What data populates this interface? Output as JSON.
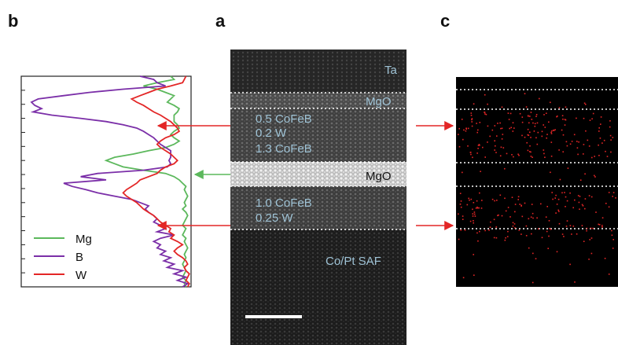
{
  "panels": {
    "a": "a",
    "b": "b",
    "c": "c"
  },
  "tem_labels": {
    "ta": "Ta",
    "mgo_top": "MgO",
    "cofeb_05": "0.5 CoFeB",
    "w_02": "0.2 W",
    "cofeb_13": "1.3 CoFeB",
    "mgo_mid": "MgO",
    "cofeb_10": "1.0  CoFeB",
    "w_025": "0.25 W",
    "copt": "Co/Pt SAF"
  },
  "legend": [
    {
      "label": "Mg",
      "color": "#5cb85c"
    },
    {
      "label": "B",
      "color": "#7b2fa8"
    },
    {
      "label": "W",
      "color": "#e32626"
    }
  ],
  "colors": {
    "arrow_red": "#e32626",
    "arrow_green": "#5cb85c",
    "label_blue": "#9fc3d6"
  },
  "chart_data": {
    "type": "line",
    "orientation": "vertical-profile",
    "series": [
      {
        "name": "Mg",
        "y": [
          0,
          1,
          2,
          3,
          4,
          5,
          6,
          7,
          8,
          9,
          10,
          11,
          12,
          13,
          14,
          15,
          16,
          17,
          18,
          19,
          20,
          21,
          22,
          23,
          24,
          25,
          26,
          27,
          28,
          29,
          30,
          31,
          32,
          33,
          34,
          35,
          36,
          37,
          38,
          39,
          40,
          41,
          42,
          43,
          44,
          45,
          46,
          47,
          48,
          49,
          50,
          51,
          52,
          53,
          54,
          55,
          56,
          57,
          58,
          59,
          60,
          61,
          62,
          63,
          64,
          65
        ],
        "v": [
          0.88,
          0.9,
          0.8,
          0.72,
          0.8,
          0.85,
          0.9,
          0.88,
          0.86,
          0.9,
          0.93,
          0.92,
          0.9,
          0.9,
          0.9,
          0.92,
          0.93,
          0.9,
          0.88,
          0.9,
          0.93,
          0.9,
          0.85,
          0.75,
          0.66,
          0.55,
          0.5,
          0.55,
          0.6,
          0.72,
          0.85,
          0.9,
          0.93,
          0.95,
          0.97,
          0.96,
          0.97,
          0.98,
          0.97,
          0.96,
          0.97,
          0.95,
          0.97,
          0.98,
          0.97,
          0.96,
          0.95,
          0.97,
          0.96,
          0.95,
          0.97,
          0.96,
          0.97,
          0.98,
          0.97,
          0.96,
          0.97,
          0.96,
          0.95,
          0.96,
          0.97,
          0.96,
          0.95,
          0.97,
          0.96,
          0.97
        ]
      },
      {
        "name": "B",
        "y": [
          0,
          1,
          2,
          3,
          4,
          5,
          6,
          7,
          8,
          9,
          10,
          11,
          12,
          13,
          14,
          15,
          16,
          17,
          18,
          19,
          20,
          21,
          22,
          23,
          24,
          25,
          26,
          27,
          28,
          29,
          30,
          31,
          32,
          33,
          34,
          35,
          36,
          37,
          38,
          39,
          40,
          41,
          42,
          43,
          44,
          45,
          46,
          47,
          48,
          49,
          50,
          51,
          52,
          53,
          54,
          55,
          56,
          57,
          58,
          59,
          60,
          61,
          62,
          63,
          64,
          65
        ],
        "v": [
          0.7,
          0.78,
          0.8,
          0.85,
          0.6,
          0.4,
          0.25,
          0.1,
          0.06,
          0.08,
          0.12,
          0.07,
          0.18,
          0.35,
          0.5,
          0.6,
          0.68,
          0.72,
          0.75,
          0.78,
          0.8,
          0.82,
          0.85,
          0.88,
          0.88,
          0.88,
          0.87,
          0.88,
          0.86,
          0.72,
          0.45,
          0.35,
          0.5,
          0.25,
          0.3,
          0.38,
          0.45,
          0.55,
          0.65,
          0.7,
          0.75,
          0.73,
          0.75,
          0.78,
          0.8,
          0.78,
          0.82,
          0.85,
          0.8,
          0.9,
          0.82,
          0.78,
          0.82,
          0.8,
          0.85,
          0.82,
          0.88,
          0.84,
          0.9,
          0.86,
          0.95,
          0.9,
          0.97,
          0.92,
          0.98,
          0.95
        ]
      },
      {
        "name": "W",
        "y": [
          0,
          1,
          2,
          3,
          4,
          5,
          6,
          7,
          8,
          9,
          10,
          11,
          12,
          13,
          14,
          15,
          16,
          17,
          18,
          19,
          20,
          21,
          22,
          23,
          24,
          25,
          26,
          27,
          28,
          29,
          30,
          31,
          32,
          33,
          34,
          35,
          36,
          37,
          38,
          39,
          40,
          41,
          42,
          43,
          44,
          45,
          46,
          47,
          48,
          49,
          50,
          51,
          52,
          53,
          54,
          55,
          56,
          57,
          58,
          59,
          60,
          61,
          62,
          63,
          64,
          65
        ],
        "v": [
          0.97,
          0.96,
          0.95,
          0.88,
          0.8,
          0.75,
          0.7,
          0.65,
          0.68,
          0.72,
          0.75,
          0.78,
          0.82,
          0.85,
          0.88,
          0.9,
          0.92,
          0.93,
          0.9,
          0.85,
          0.82,
          0.8,
          0.82,
          0.85,
          0.88,
          0.9,
          0.92,
          0.9,
          0.85,
          0.82,
          0.8,
          0.75,
          0.7,
          0.68,
          0.65,
          0.62,
          0.6,
          0.62,
          0.65,
          0.68,
          0.7,
          0.72,
          0.75,
          0.78,
          0.8,
          0.82,
          0.85,
          0.88,
          0.87,
          0.9,
          0.88,
          0.92,
          0.95,
          0.92,
          0.9,
          0.92,
          0.95,
          0.97,
          0.98,
          0.96,
          0.97,
          0.99,
          0.98,
          0.97,
          0.99,
          0.98
        ]
      }
    ]
  }
}
